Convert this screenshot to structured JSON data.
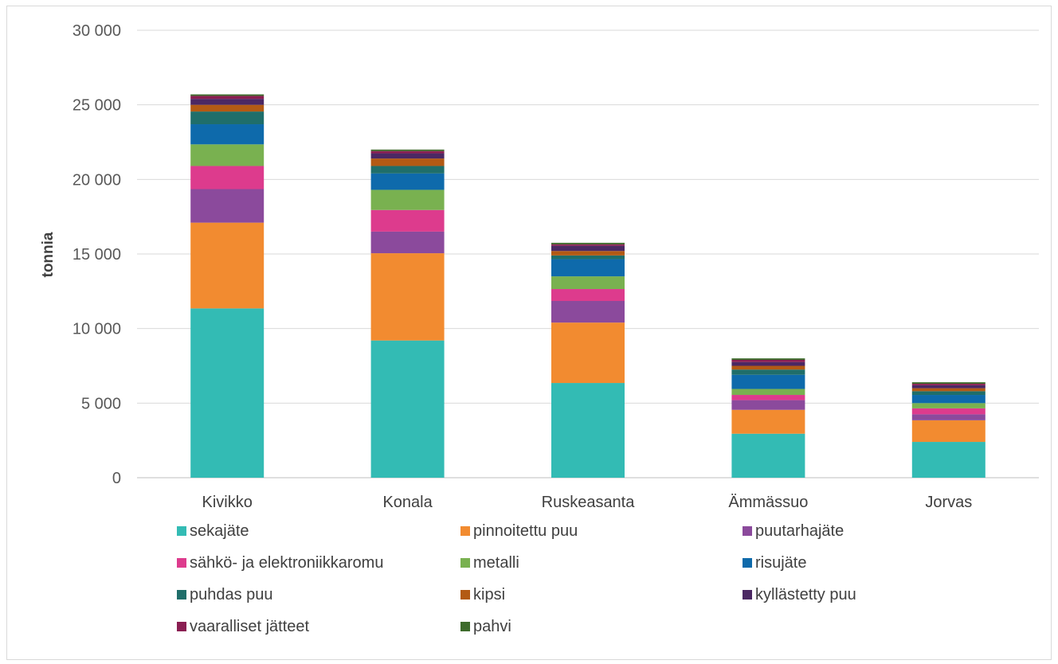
{
  "chart_data": {
    "type": "bar",
    "stacked": true,
    "title": "",
    "xlabel": "",
    "ylabel": "tonnia",
    "ylim": [
      0,
      30000
    ],
    "yticks": [
      "0",
      "5 000",
      "10 000",
      "15 000",
      "20 000",
      "25 000",
      "30 000"
    ],
    "ytick_values": [
      0,
      5000,
      10000,
      15000,
      20000,
      25000,
      30000
    ],
    "grid": true,
    "legend_position": "bottom",
    "categories": [
      "Kivikko",
      "Konala",
      "Ruskeasanta",
      "Ämmässuo",
      "Jorvas"
    ],
    "series": [
      {
        "name": "sekajäte",
        "color": "#33bbb4",
        "values": [
          11350,
          9200,
          6350,
          2950,
          2400
        ]
      },
      {
        "name": "pinnoitettu puu",
        "color": "#f28b30",
        "values": [
          5750,
          5850,
          4050,
          1600,
          1450
        ]
      },
      {
        "name": "puutarhajäte",
        "color": "#8b4a9c",
        "values": [
          2250,
          1450,
          1450,
          650,
          400
        ]
      },
      {
        "name": "sähkö- ja elektroniikkaromu",
        "color": "#dd3b8d",
        "values": [
          1550,
          1450,
          800,
          350,
          400
        ]
      },
      {
        "name": "metalli",
        "color": "#79b150",
        "values": [
          1450,
          1350,
          850,
          400,
          350
        ]
      },
      {
        "name": "risujäte",
        "color": "#0e6aab",
        "values": [
          1350,
          1100,
          1150,
          950,
          550
        ]
      },
      {
        "name": "puhdas puu",
        "color": "#1f6e6a",
        "values": [
          850,
          500,
          250,
          350,
          250
        ]
      },
      {
        "name": "kipsi",
        "color": "#b35a14",
        "values": [
          450,
          500,
          300,
          250,
          200
        ]
      },
      {
        "name": "kyllästetty puu",
        "color": "#4b2863",
        "values": [
          400,
          350,
          350,
          250,
          200
        ]
      },
      {
        "name": "vaaralliset jätteet",
        "color": "#8a1e52",
        "values": [
          200,
          150,
          100,
          150,
          100
        ]
      },
      {
        "name": "pahvi",
        "color": "#3e6b2c",
        "values": [
          100,
          100,
          100,
          100,
          100
        ]
      }
    ]
  }
}
